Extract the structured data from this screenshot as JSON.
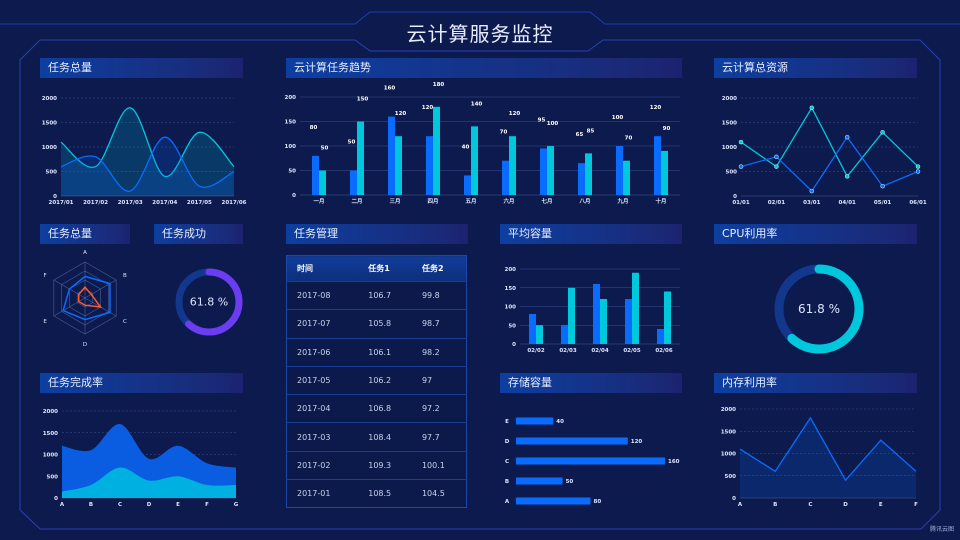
{
  "header": {
    "title": "云计算服务监控"
  },
  "panels": {
    "total_tasks": "任务总量",
    "trend": "云计算任务趋势",
    "resources": "云计算总资源",
    "radar": "任务总量",
    "success": "任务成功",
    "management": "任务管理",
    "avg_capacity": "平均容量",
    "cpu": "CPU利用率",
    "completion": "任务完成率",
    "storage": "存储容量",
    "memory": "内存利用率"
  },
  "table": {
    "columns": [
      "时间",
      "任务1",
      "任务2"
    ],
    "rows": [
      [
        "2017-08",
        "106.7",
        "99.8"
      ],
      [
        "2017-07",
        "105.8",
        "98.7"
      ],
      [
        "2017-06",
        "106.1",
        "98.2"
      ],
      [
        "2017-05",
        "106.2",
        "97"
      ],
      [
        "2017-04",
        "106.8",
        "97.2"
      ],
      [
        "2017-03",
        "108.4",
        "97.7"
      ],
      [
        "2017-02",
        "109.3",
        "100.1"
      ],
      [
        "2017-01",
        "108.5",
        "104.5"
      ]
    ]
  },
  "watermark": "腾讯云图",
  "colors": {
    "blue": "#0a6cff",
    "cyan": "#00c8dc",
    "purple": "#6b3cf2",
    "orange": "#ff5a2a",
    "track": "#12388e"
  },
  "chart_data": [
    {
      "type": "line",
      "smooth": true,
      "area": true,
      "x": [
        "2017/01",
        "2017/02",
        "2017/03",
        "2017/04",
        "2017/05",
        "2017/06"
      ],
      "yticks": [
        "0",
        "500",
        "1000",
        "1500",
        "2000"
      ],
      "ylim": [
        0,
        2000
      ],
      "series": [
        {
          "color": "#00c8dc",
          "values": [
            1100,
            600,
            1800,
            400,
            1300,
            600
          ]
        },
        {
          "color": "#0a6cff",
          "values": [
            600,
            800,
            100,
            1200,
            200,
            500
          ]
        }
      ]
    },
    {
      "type": "bar",
      "categories": [
        "一月",
        "二月",
        "三月",
        "四月",
        "五月",
        "六月",
        "七月",
        "八月",
        "九月",
        "十月"
      ],
      "yticks": [
        "0",
        "50",
        "100",
        "150",
        "200"
      ],
      "ylim": [
        0,
        200
      ],
      "data_labels": true,
      "series": [
        {
          "color": "#0a6cff",
          "values": [
            80,
            50,
            160,
            120,
            40,
            70,
            95,
            65,
            100,
            120
          ]
        },
        {
          "color": "#00c8dc",
          "values": [
            50,
            150,
            120,
            180,
            140,
            120,
            100,
            85,
            70,
            90
          ]
        }
      ]
    },
    {
      "type": "line",
      "markers": true,
      "x": [
        "01/01",
        "02/01",
        "03/01",
        "04/01",
        "05/01",
        "06/01"
      ],
      "yticks": [
        "0",
        "500",
        "1000",
        "1500",
        "2000"
      ],
      "ylim": [
        0,
        2000
      ],
      "series": [
        {
          "color": "#00c8dc",
          "values": [
            1100,
            600,
            1800,
            400,
            1300,
            600
          ]
        },
        {
          "color": "#0a6cff",
          "values": [
            600,
            800,
            100,
            1200,
            200,
            500
          ]
        }
      ]
    },
    {
      "type": "radar",
      "indicators": [
        "A",
        "B",
        "C",
        "D",
        "E",
        "F"
      ],
      "max": 100,
      "series": [
        {
          "color": "#0a6cff",
          "values": [
            60,
            80,
            80,
            60,
            70,
            50
          ]
        },
        {
          "color": "#ff5a2a",
          "values": [
            30,
            20,
            50,
            20,
            20,
            20
          ]
        }
      ]
    },
    {
      "type": "gauge",
      "value": 61.8,
      "label": "61.8 %",
      "color": "#6b3cf2"
    },
    {
      "type": "bar",
      "categories": [
        "02/02",
        "02/03",
        "02/04",
        "02/05",
        "02/06"
      ],
      "yticks": [
        "0",
        "50",
        "100",
        "150",
        "200"
      ],
      "ylim": [
        0,
        200
      ],
      "series": [
        {
          "color": "#0a6cff",
          "values": [
            80,
            50,
            160,
            120,
            40
          ]
        },
        {
          "color": "#00c8dc",
          "values": [
            50,
            150,
            120,
            190,
            140
          ]
        }
      ]
    },
    {
      "type": "gauge",
      "value": 61.8,
      "label": "61.8 %",
      "color": "#00c8dc"
    },
    {
      "type": "area",
      "stacked": true,
      "smooth": true,
      "x": [
        "A",
        "B",
        "C",
        "D",
        "E",
        "F",
        "G"
      ],
      "yticks": [
        "0",
        "500",
        "1000",
        "1500",
        "2000"
      ],
      "ylim": [
        0,
        2000
      ],
      "series": [
        {
          "color": "#00b0e0",
          "values": [
            150,
            300,
            700,
            400,
            500,
            300,
            300
          ]
        },
        {
          "color": "#0a5ce0",
          "values": [
            1050,
            800,
            1000,
            500,
            700,
            500,
            400
          ]
        }
      ]
    },
    {
      "type": "bar",
      "orientation": "horizontal",
      "categories": [
        "A",
        "B",
        "C",
        "D",
        "E"
      ],
      "values": [
        80,
        50,
        160,
        120,
        40
      ],
      "labels": [
        "80",
        "50",
        "160",
        "120",
        "40"
      ],
      "xlim": [
        0,
        160
      ],
      "color": "#0a6cff"
    },
    {
      "type": "area",
      "x": [
        "A",
        "B",
        "C",
        "D",
        "E",
        "F"
      ],
      "yticks": [
        "0",
        "500",
        "1000",
        "1500",
        "2000"
      ],
      "ylim": [
        0,
        2000
      ],
      "series": [
        {
          "color": "#0a6cff",
          "values": [
            1100,
            600,
            1800,
            400,
            1300,
            600
          ]
        }
      ]
    }
  ]
}
